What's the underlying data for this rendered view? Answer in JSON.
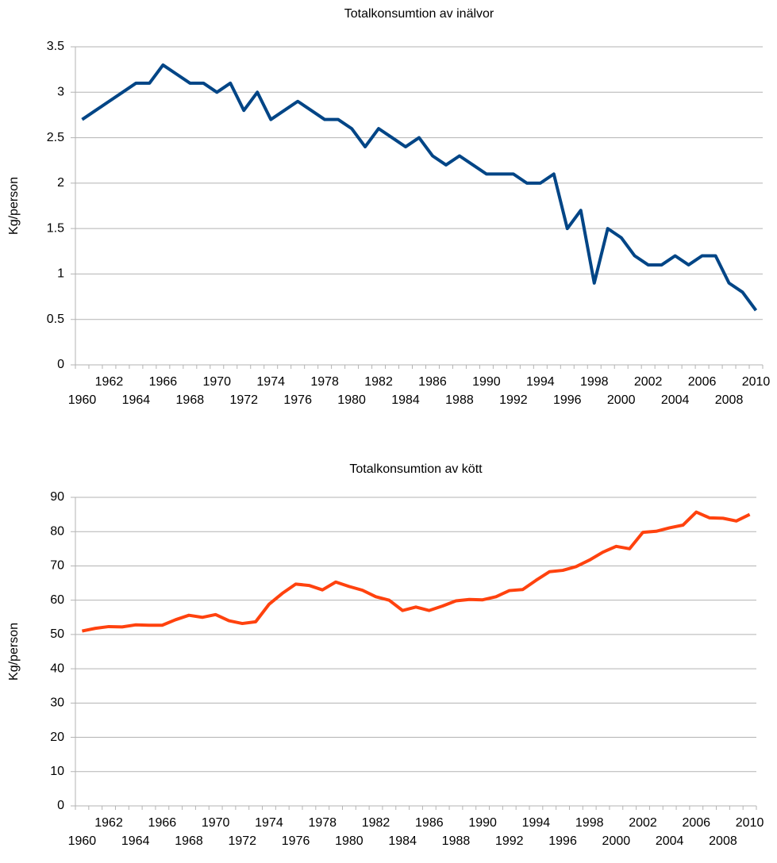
{
  "chart_data": [
    {
      "type": "line",
      "title": "Totalkonsumtion av inälvor",
      "y_label": "Kg/person",
      "color": "#004586",
      "grid": true,
      "ylim": [
        0,
        3.5
      ],
      "yticks": [
        0,
        0.5,
        1,
        1.5,
        2,
        2.5,
        3,
        3.5
      ],
      "categories": [
        "1960",
        null,
        "1962",
        null,
        "1964",
        null,
        "1966",
        null,
        "1968",
        null,
        "1970",
        null,
        "1972",
        null,
        "1974",
        null,
        "1976",
        null,
        "1978",
        null,
        "1980",
        null,
        "1982",
        null,
        "1984",
        null,
        "1986",
        null,
        "1988",
        null,
        "1990",
        null,
        "1992",
        null,
        "1994",
        null,
        "1996",
        null,
        "1998",
        null,
        "2000",
        null,
        "2002",
        null,
        "2004",
        null,
        "2006",
        null,
        "2008",
        null,
        "2010"
      ],
      "values": [
        2.7,
        2.8,
        2.9,
        3.0,
        3.1,
        3.1,
        3.3,
        3.2,
        3.1,
        3.1,
        3.0,
        3.1,
        2.8,
        3.0,
        2.7,
        2.8,
        2.9,
        2.8,
        2.7,
        2.7,
        2.6,
        2.4,
        2.6,
        2.5,
        2.4,
        2.5,
        2.3,
        2.2,
        2.3,
        2.2,
        2.1,
        2.1,
        2.1,
        2.0,
        2.0,
        2.1,
        1.5,
        1.7,
        0.9,
        1.5,
        1.4,
        1.2,
        1.1,
        1.1,
        1.2,
        1.1,
        1.2,
        1.2,
        0.9,
        0.8,
        0.6
      ]
    },
    {
      "type": "line",
      "title": "Totalkonsumtion av kött",
      "y_label": "Kg/person",
      "color": "#ff420e",
      "grid": true,
      "ylim": [
        0,
        90
      ],
      "yticks": [
        0,
        10,
        20,
        30,
        40,
        50,
        60,
        70,
        80,
        90
      ],
      "categories": [
        "1960",
        null,
        "1962",
        null,
        "1964",
        null,
        "1966",
        null,
        "1968",
        null,
        "1970",
        null,
        "1972",
        null,
        "1974",
        null,
        "1976",
        null,
        "1978",
        null,
        "1980",
        null,
        "1982",
        null,
        "1984",
        null,
        "1986",
        null,
        "1988",
        null,
        "1990",
        null,
        "1992",
        null,
        "1994",
        null,
        "1996",
        null,
        "1998",
        null,
        "2000",
        null,
        "2002",
        null,
        "2004",
        null,
        "2006",
        null,
        "2008",
        null,
        "2010"
      ],
      "values": [
        51,
        51.8,
        52.3,
        52.2,
        52.8,
        52.7,
        52.7,
        54.3,
        55.6,
        55,
        55.8,
        54,
        53.2,
        53.7,
        58.8,
        62,
        64.7,
        64.3,
        63,
        65.3,
        64,
        62.9,
        61,
        60,
        57,
        58,
        57,
        58.3,
        59.8,
        60.2,
        60.1,
        61,
        62.8,
        63.1,
        65.8,
        68.3,
        68.7,
        69.8,
        71.7,
        74,
        75.7,
        75,
        79.8,
        80.1,
        81.1,
        81.9,
        85.7,
        84,
        83.9,
        83.1,
        85
      ]
    }
  ]
}
